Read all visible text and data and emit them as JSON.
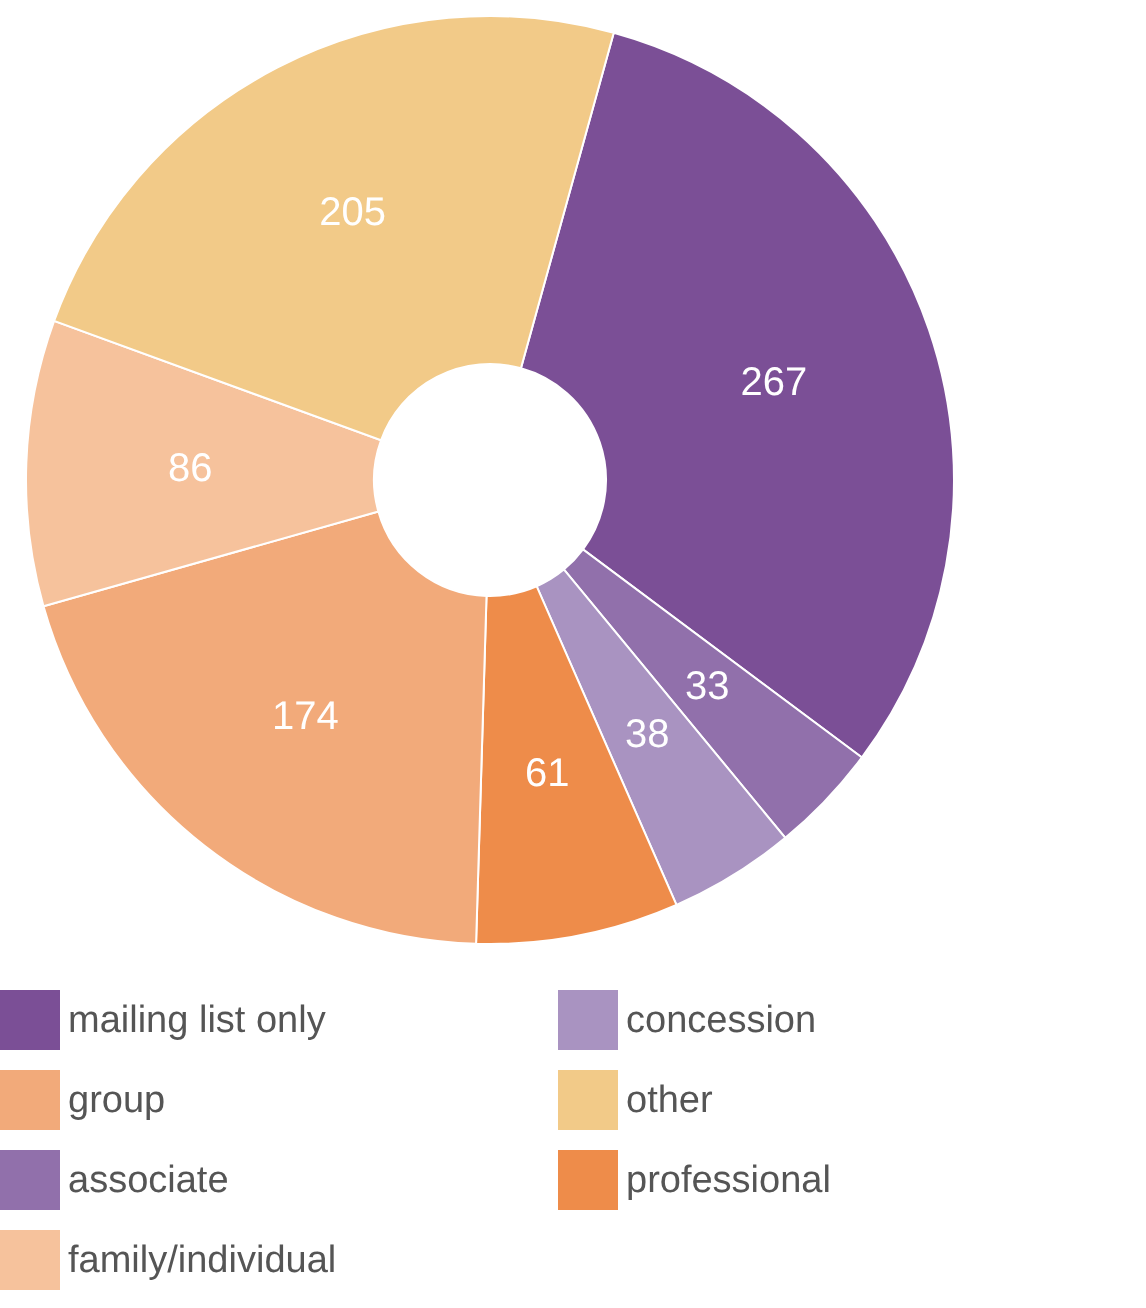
{
  "chart_data": {
    "type": "donut",
    "categories": [
      "mailing list only",
      "associate",
      "concession",
      "professional",
      "group",
      "family/individual",
      "other"
    ],
    "values": [
      267,
      33,
      38,
      61,
      174,
      86,
      205
    ],
    "colors": [
      "#7b4f96",
      "#9170ab",
      "#a993c1",
      "#ee8c4a",
      "#f2aa7a",
      "#f6c29c",
      "#f2ca88"
    ],
    "data_labels": true,
    "legend": "bottom"
  }
}
